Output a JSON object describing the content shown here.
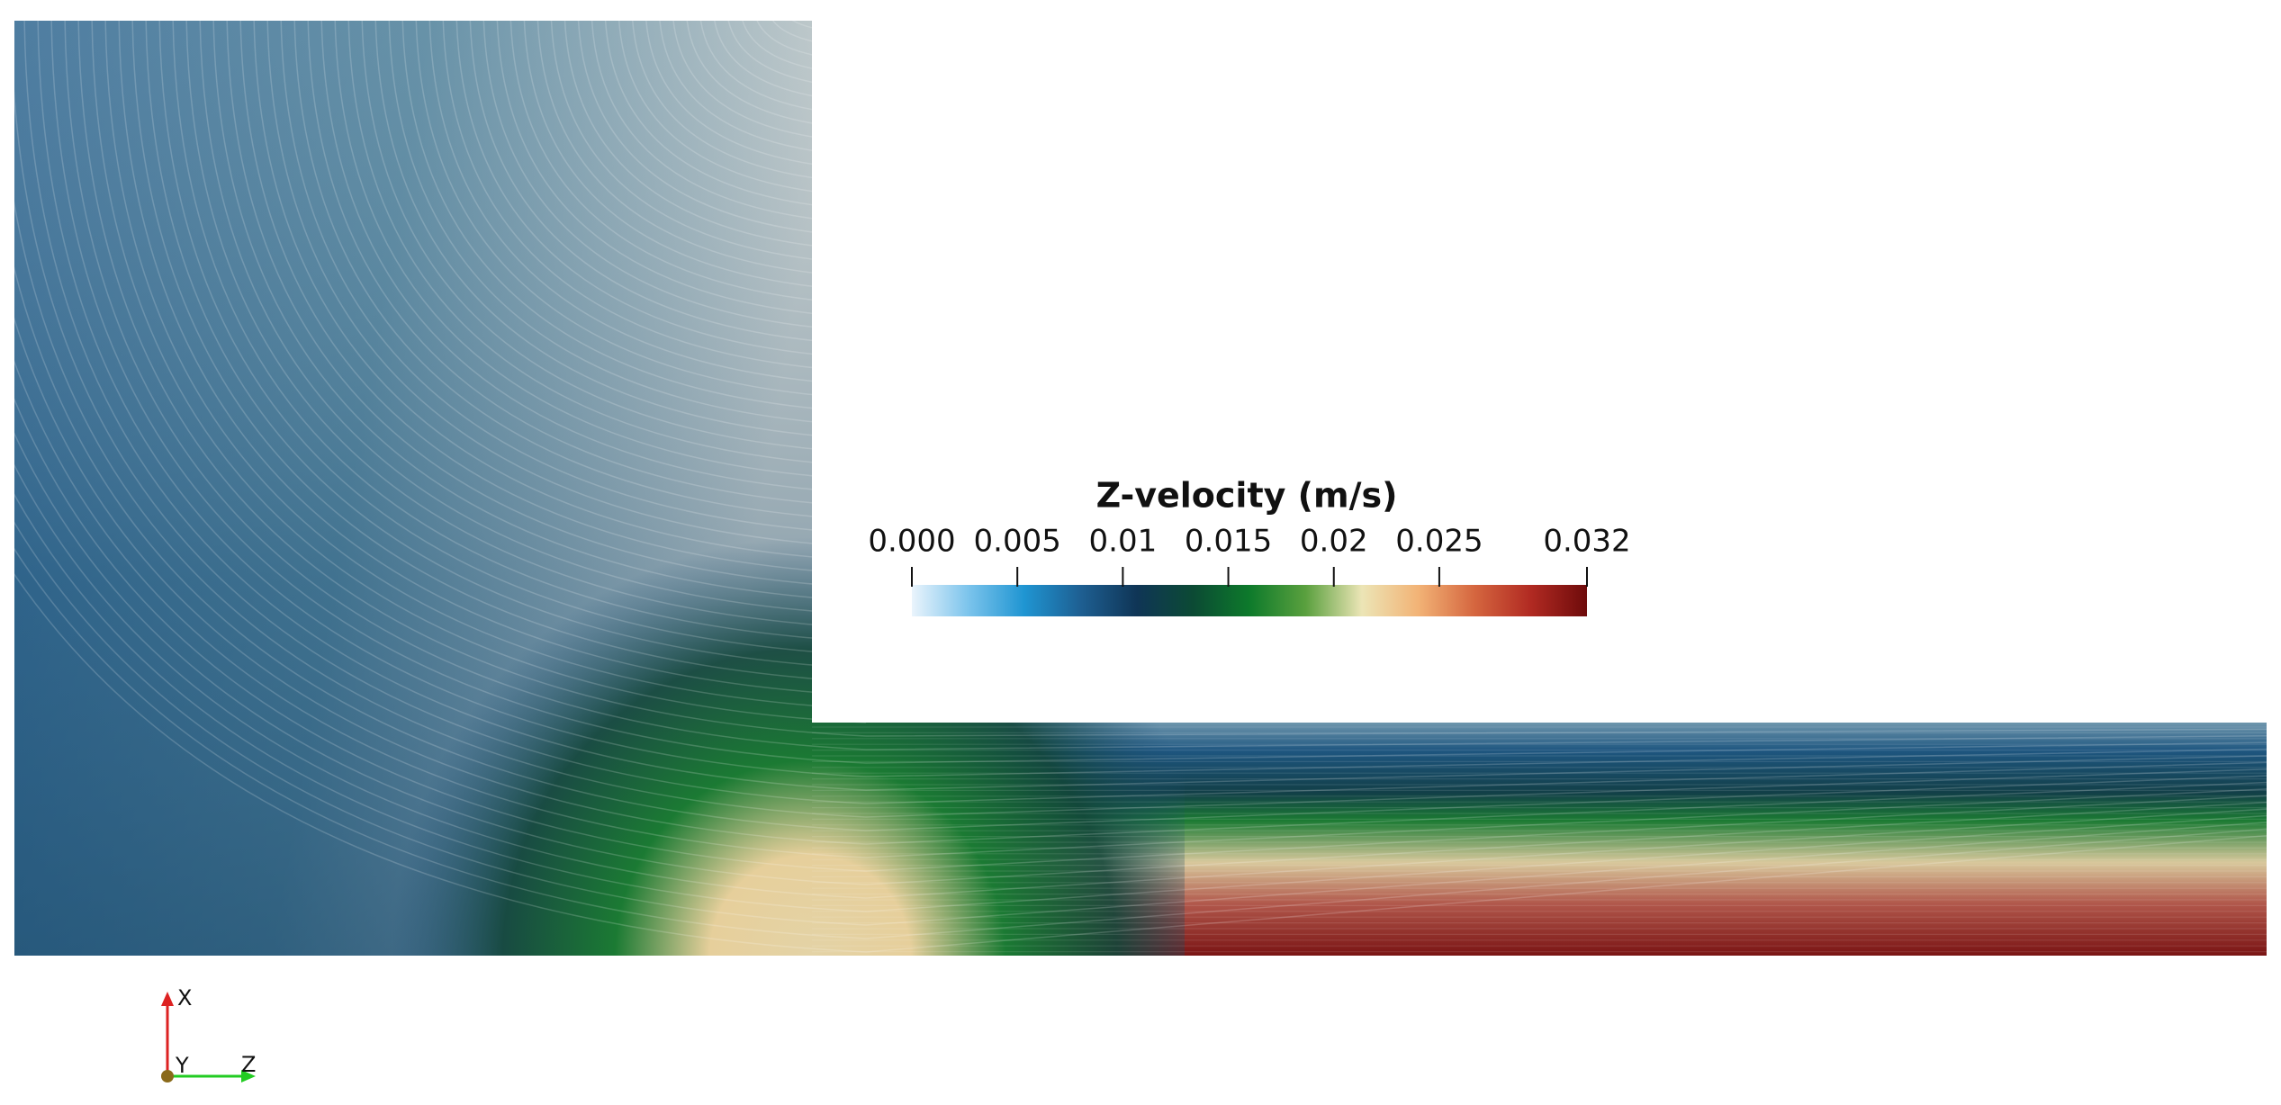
{
  "colorbar": {
    "title": "Z-velocity (m/s)",
    "range": [
      0,
      0.032
    ],
    "ticks": [
      {
        "value": 0,
        "label": "0.000"
      },
      0.005,
      0.01,
      0.015,
      0.02,
      0.025,
      0.032
    ],
    "colormap": [
      "#eaf4fc",
      "#7cc4ec",
      "#1f95d2",
      "#1e5f92",
      "#0f3556",
      "#0c4a34",
      "#0d7a2b",
      "#5aa03e",
      "#ece5b6",
      "#f2b376",
      "#d5663f",
      "#b12a22",
      "#6e0b0b"
    ]
  },
  "axes": {
    "labels": [
      "X",
      "Y",
      "Z"
    ]
  }
}
